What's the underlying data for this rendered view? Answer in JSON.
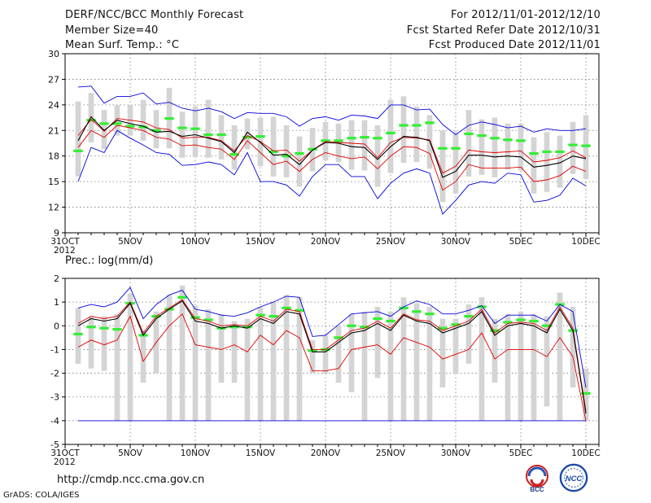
{
  "header": {
    "title": "DERF/NCC/BCC Monthly Forecast",
    "member_size": "Member Size=40",
    "variable": "Mean Surf. Temp.: °C",
    "period": "For 2012/11/01-2012/12/10",
    "started": "Fcst Started Refer Date 2012/10/31",
    "produced": "Fcst Produced Date 2012/11/01"
  },
  "footer": {
    "url": "http://cmdp.ncc.cma.gov.cn",
    "grads": "GrADS: COLA/IGES",
    "logo_bcc": "BCC",
    "logo_ncc": "NCC"
  },
  "colors": {
    "max_min": "#0000dd",
    "spread": "#dd0000",
    "mean": "#000000",
    "climatology": "#33ee33",
    "bars": "#d4d4d4"
  },
  "chart_data": [
    {
      "type": "line",
      "title": "Mean Surf. Temp.: °C",
      "ylim": [
        9,
        30
      ],
      "yticks": [
        9,
        12,
        15,
        18,
        21,
        24,
        27,
        30
      ],
      "xlim": [
        31,
        72
      ],
      "x_start_label": "31OCT",
      "x_year_label": "2012",
      "xticks": [
        {
          "day": 31,
          "label": "31OCT"
        },
        {
          "day": 36,
          "label": "5NOV"
        },
        {
          "day": 41,
          "label": "10NOV"
        },
        {
          "day": 46,
          "label": "15NOV"
        },
        {
          "day": 51,
          "label": "20NOV"
        },
        {
          "day": 56,
          "label": "25NOV"
        },
        {
          "day": 61,
          "label": "30NOV"
        },
        {
          "day": 66,
          "label": "5DEC"
        },
        {
          "day": 71,
          "label": "10DEC"
        }
      ],
      "grid": true,
      "days": [
        32,
        33,
        34,
        35,
        36,
        37,
        38,
        39,
        40,
        41,
        42,
        43,
        44,
        45,
        46,
        47,
        48,
        49,
        50,
        51,
        52,
        53,
        54,
        55,
        56,
        57,
        58,
        59,
        60,
        61,
        62,
        63,
        64,
        65,
        66,
        67,
        68,
        69,
        70,
        71
      ],
      "series": [
        {
          "name": "max",
          "values": [
            26.1,
            26.2,
            24.2,
            25.0,
            25.0,
            25.4,
            24.1,
            24.3,
            23.6,
            23.3,
            23.6,
            23.2,
            22.4,
            23.1,
            23.0,
            23.0,
            22.6,
            21.5,
            22.4,
            22.6,
            22.2,
            22.8,
            22.7,
            22.4,
            24.0,
            24.0,
            23.4,
            23.5,
            21.7,
            20.5,
            21.6,
            22.0,
            21.7,
            21.3,
            21.5,
            20.8,
            21.2,
            21.0,
            21.0,
            21.2
          ]
        },
        {
          "name": "upper",
          "values": [
            20.4,
            22.3,
            20.9,
            22.4,
            22.2,
            22.0,
            21.3,
            21.1,
            20.1,
            20.2,
            20.2,
            19.8,
            18.6,
            20.4,
            19.7,
            18.6,
            18.7,
            17.4,
            18.7,
            19.7,
            19.6,
            19.5,
            19.4,
            17.8,
            19.6,
            20.2,
            20.1,
            19.9,
            16.0,
            16.8,
            18.7,
            18.5,
            18.4,
            18.5,
            18.6,
            17.3,
            17.5,
            17.8,
            18.6,
            17.8
          ]
        },
        {
          "name": "mean",
          "values": [
            19.8,
            22.6,
            21.0,
            22.2,
            21.8,
            21.5,
            20.8,
            20.9,
            20.3,
            20.5,
            20.1,
            19.7,
            18.4,
            20.8,
            19.6,
            18.1,
            18.2,
            17.0,
            18.7,
            19.6,
            19.5,
            19.1,
            19.0,
            17.6,
            19.1,
            20.3,
            20.2,
            19.8,
            15.5,
            16.2,
            18.1,
            18.1,
            17.9,
            18.0,
            17.9,
            16.7,
            16.9,
            17.2,
            18.0,
            17.7
          ]
        },
        {
          "name": "lower",
          "values": [
            19.0,
            21.0,
            20.2,
            21.6,
            21.3,
            21.0,
            20.2,
            20.0,
            19.2,
            19.3,
            19.0,
            18.8,
            17.6,
            19.8,
            18.4,
            17.0,
            17.4,
            16.2,
            17.6,
            18.4,
            18.0,
            17.7,
            17.9,
            16.5,
            18.0,
            19.1,
            19.0,
            18.3,
            14.0,
            15.0,
            17.0,
            16.6,
            16.6,
            16.6,
            16.7,
            15.0,
            15.2,
            15.7,
            16.8,
            16.2
          ]
        },
        {
          "name": "min",
          "values": [
            15.0,
            19.0,
            18.4,
            21.0,
            20.1,
            19.3,
            18.4,
            18.2,
            16.9,
            17.0,
            17.3,
            17.0,
            15.8,
            18.4,
            15.0,
            15.0,
            14.6,
            13.3,
            15.6,
            17.0,
            17.0,
            15.6,
            15.6,
            13.0,
            14.8,
            16.0,
            16.5,
            16.0,
            11.2,
            12.8,
            14.6,
            15.0,
            14.8,
            16.0,
            15.8,
            12.6,
            12.8,
            13.4,
            15.4,
            14.5
          ]
        },
        {
          "name": "climatology",
          "values": [
            18.6,
            22.2,
            21.8,
            21.8,
            21.5,
            21.4,
            21.0,
            22.4,
            21.3,
            21.2,
            20.5,
            20.5,
            18.2,
            20.2,
            20.3,
            18.5,
            18.0,
            18.3,
            18.8,
            19.8,
            19.8,
            20.1,
            20.2,
            20.1,
            20.7,
            21.6,
            21.6,
            21.9,
            18.9,
            18.9,
            20.6,
            20.4,
            20.1,
            19.9,
            19.8,
            18.3,
            18.5,
            18.5,
            19.3,
            19.2
          ]
        }
      ],
      "bars": {
        "name": "ensemble range",
        "low": [
          15.6,
          19.6,
          18.8,
          20.4,
          20.4,
          19.8,
          18.9,
          18.9,
          17.8,
          17.9,
          17.8,
          17.6,
          16.4,
          18.8,
          16.8,
          15.6,
          15.5,
          14.4,
          16.2,
          17.5,
          17.3,
          16.4,
          16.3,
          14.4,
          16.0,
          17.2,
          17.3,
          16.5,
          12.6,
          13.6,
          15.6,
          15.8,
          15.5,
          16.4,
          16.3,
          13.6,
          13.8,
          14.3,
          15.9,
          15.3
        ],
        "high": [
          24.4,
          25.4,
          23.4,
          24.0,
          24.0,
          24.6,
          23.4,
          26.0,
          23.2,
          23.8,
          24.6,
          22.8,
          21.6,
          22.4,
          22.5,
          22.6,
          21.6,
          20.3,
          21.3,
          22.0,
          21.8,
          22.2,
          22.2,
          21.6,
          24.6,
          25.0,
          23.8,
          22.8,
          21.0,
          20.8,
          23.4,
          22.3,
          22.5,
          21.8,
          21.8,
          20.2,
          20.8,
          20.4,
          22.0,
          22.8
        ]
      }
    },
    {
      "type": "line",
      "title": "Prec.: log(mm/d)",
      "ylim": [
        -5,
        2
      ],
      "yticks": [
        -5,
        -4,
        -3,
        -2,
        -1,
        0,
        1,
        2
      ],
      "xlim": [
        31,
        72
      ],
      "x_start_label": "31OCT",
      "x_year_label": "2012",
      "xticks": [
        {
          "day": 31,
          "label": "31OCT"
        },
        {
          "day": 36,
          "label": "5NOV"
        },
        {
          "day": 41,
          "label": "10NOV"
        },
        {
          "day": 46,
          "label": "15NOV"
        },
        {
          "day": 51,
          "label": "20NOV"
        },
        {
          "day": 56,
          "label": "25NOV"
        },
        {
          "day": 61,
          "label": "30NOV"
        },
        {
          "day": 66,
          "label": "5DEC"
        },
        {
          "day": 71,
          "label": "10DEC"
        }
      ],
      "grid": true,
      "days": [
        32,
        33,
        34,
        35,
        36,
        37,
        38,
        39,
        40,
        41,
        42,
        43,
        44,
        45,
        46,
        47,
        48,
        49,
        50,
        51,
        52,
        53,
        54,
        55,
        56,
        57,
        58,
        59,
        60,
        61,
        62,
        63,
        64,
        65,
        66,
        67,
        68,
        69,
        70,
        71
      ],
      "series": [
        {
          "name": "max",
          "values": [
            0.75,
            0.9,
            0.8,
            1.0,
            1.62,
            0.3,
            0.9,
            1.3,
            1.5,
            0.7,
            0.6,
            0.45,
            0.4,
            0.55,
            0.8,
            1.0,
            1.25,
            1.2,
            -0.45,
            -0.4,
            0.05,
            0.5,
            0.55,
            0.6,
            0.4,
            0.8,
            1.05,
            0.9,
            0.5,
            0.5,
            0.65,
            0.85,
            0.1,
            0.45,
            0.45,
            0.45,
            0.2,
            0.9,
            0.6,
            -2.6
          ]
        },
        {
          "name": "upper",
          "values": [
            0.1,
            0.4,
            0.3,
            0.4,
            1.0,
            -0.3,
            0.4,
            0.75,
            1.1,
            0.3,
            0.2,
            0.0,
            0.05,
            0.0,
            0.4,
            0.2,
            0.7,
            0.6,
            -1.0,
            -1.0,
            -0.6,
            -0.2,
            -0.1,
            0.2,
            -0.1,
            0.5,
            0.25,
            0.2,
            -0.2,
            0.0,
            0.2,
            0.7,
            -0.3,
            0.1,
            0.15,
            0.1,
            -0.2,
            0.8,
            -0.1,
            -3.6
          ]
        },
        {
          "name": "mean",
          "values": [
            0.0,
            0.3,
            0.2,
            0.3,
            0.95,
            -0.4,
            0.3,
            0.7,
            1.05,
            0.2,
            0.1,
            -0.1,
            0.0,
            -0.1,
            0.3,
            0.1,
            0.6,
            0.5,
            -1.1,
            -1.1,
            -0.7,
            -0.3,
            -0.2,
            0.1,
            -0.2,
            0.45,
            0.2,
            0.1,
            -0.3,
            -0.1,
            0.1,
            0.6,
            -0.4,
            0.0,
            0.1,
            0.0,
            -0.3,
            0.7,
            -0.2,
            -3.7
          ]
        },
        {
          "name": "lower",
          "values": [
            -0.9,
            -0.6,
            -0.8,
            -0.6,
            0.4,
            -1.5,
            -0.7,
            0.0,
            0.5,
            -0.8,
            -0.9,
            -1.0,
            -0.8,
            -1.1,
            -0.4,
            -0.8,
            -0.2,
            -0.5,
            -1.9,
            -1.9,
            -1.8,
            -1.0,
            -0.9,
            -0.8,
            -1.2,
            -0.5,
            -0.7,
            -0.9,
            -1.4,
            -1.2,
            -1.0,
            -0.3,
            -1.4,
            -1.0,
            -1.0,
            -1.0,
            -1.3,
            -0.5,
            -1.3,
            -4.0
          ]
        },
        {
          "name": "min",
          "values": [
            -4.0,
            -4.0,
            -4.0,
            -4.0,
            -4.0,
            -4.0,
            -4.0,
            -4.0,
            -4.0,
            -4.0,
            -4.0,
            -4.0,
            -4.0,
            -4.0,
            -4.0,
            -4.0,
            -4.0,
            -4.0,
            -4.0,
            -4.0,
            -4.0,
            -4.0,
            -4.0,
            -4.0,
            -4.0,
            -4.0,
            -4.0,
            -4.0,
            -4.0,
            -4.0,
            -4.0,
            -4.0,
            -4.0,
            -4.0,
            -4.0,
            -4.0,
            -4.0,
            -4.0,
            -4.0,
            -4.0
          ]
        },
        {
          "name": "climatology",
          "values": [
            -0.35,
            -0.05,
            -0.1,
            -0.15,
            0.95,
            -0.4,
            0.4,
            0.7,
            1.2,
            0.35,
            0.25,
            -0.1,
            -0.05,
            -0.05,
            0.45,
            0.4,
            0.75,
            0.65,
            -1.05,
            -1.0,
            -0.5,
            0.0,
            -0.05,
            0.3,
            0.2,
            0.75,
            0.6,
            0.5,
            -0.1,
            0.05,
            0.4,
            0.8,
            -0.2,
            0.15,
            0.25,
            0.2,
            0.0,
            0.9,
            -0.2,
            -2.85
          ]
        }
      ],
      "bars": {
        "name": "ensemble range",
        "low": [
          -1.6,
          -1.8,
          -1.9,
          -4.0,
          -4.0,
          -2.4,
          -2.0,
          -4.0,
          -4.0,
          -4.0,
          -4.0,
          -2.4,
          -2.4,
          -4.0,
          -4.0,
          -4.0,
          -4.0,
          -4.0,
          -2.0,
          -2.0,
          -2.4,
          -2.8,
          -4.0,
          -2.2,
          -4.0,
          -4.0,
          -4.0,
          -4.0,
          -2.6,
          -2.0,
          -1.6,
          -4.0,
          -2.4,
          -4.0,
          -4.0,
          -4.0,
          -3.4,
          -4.0,
          -2.6,
          -4.0
        ],
        "high": [
          0.75,
          0.4,
          0.4,
          0.5,
          1.35,
          -0.2,
          0.6,
          1.3,
          1.7,
          0.85,
          0.7,
          0.5,
          0.2,
          0.3,
          0.8,
          1.0,
          1.3,
          1.2,
          -0.6,
          -0.4,
          0.0,
          0.5,
          0.6,
          0.8,
          0.6,
          1.2,
          0.95,
          0.8,
          0.3,
          0.3,
          0.9,
          1.2,
          0.3,
          0.5,
          0.6,
          0.5,
          0.4,
          1.4,
          0.8,
          -1.8
        ]
      }
    }
  ]
}
